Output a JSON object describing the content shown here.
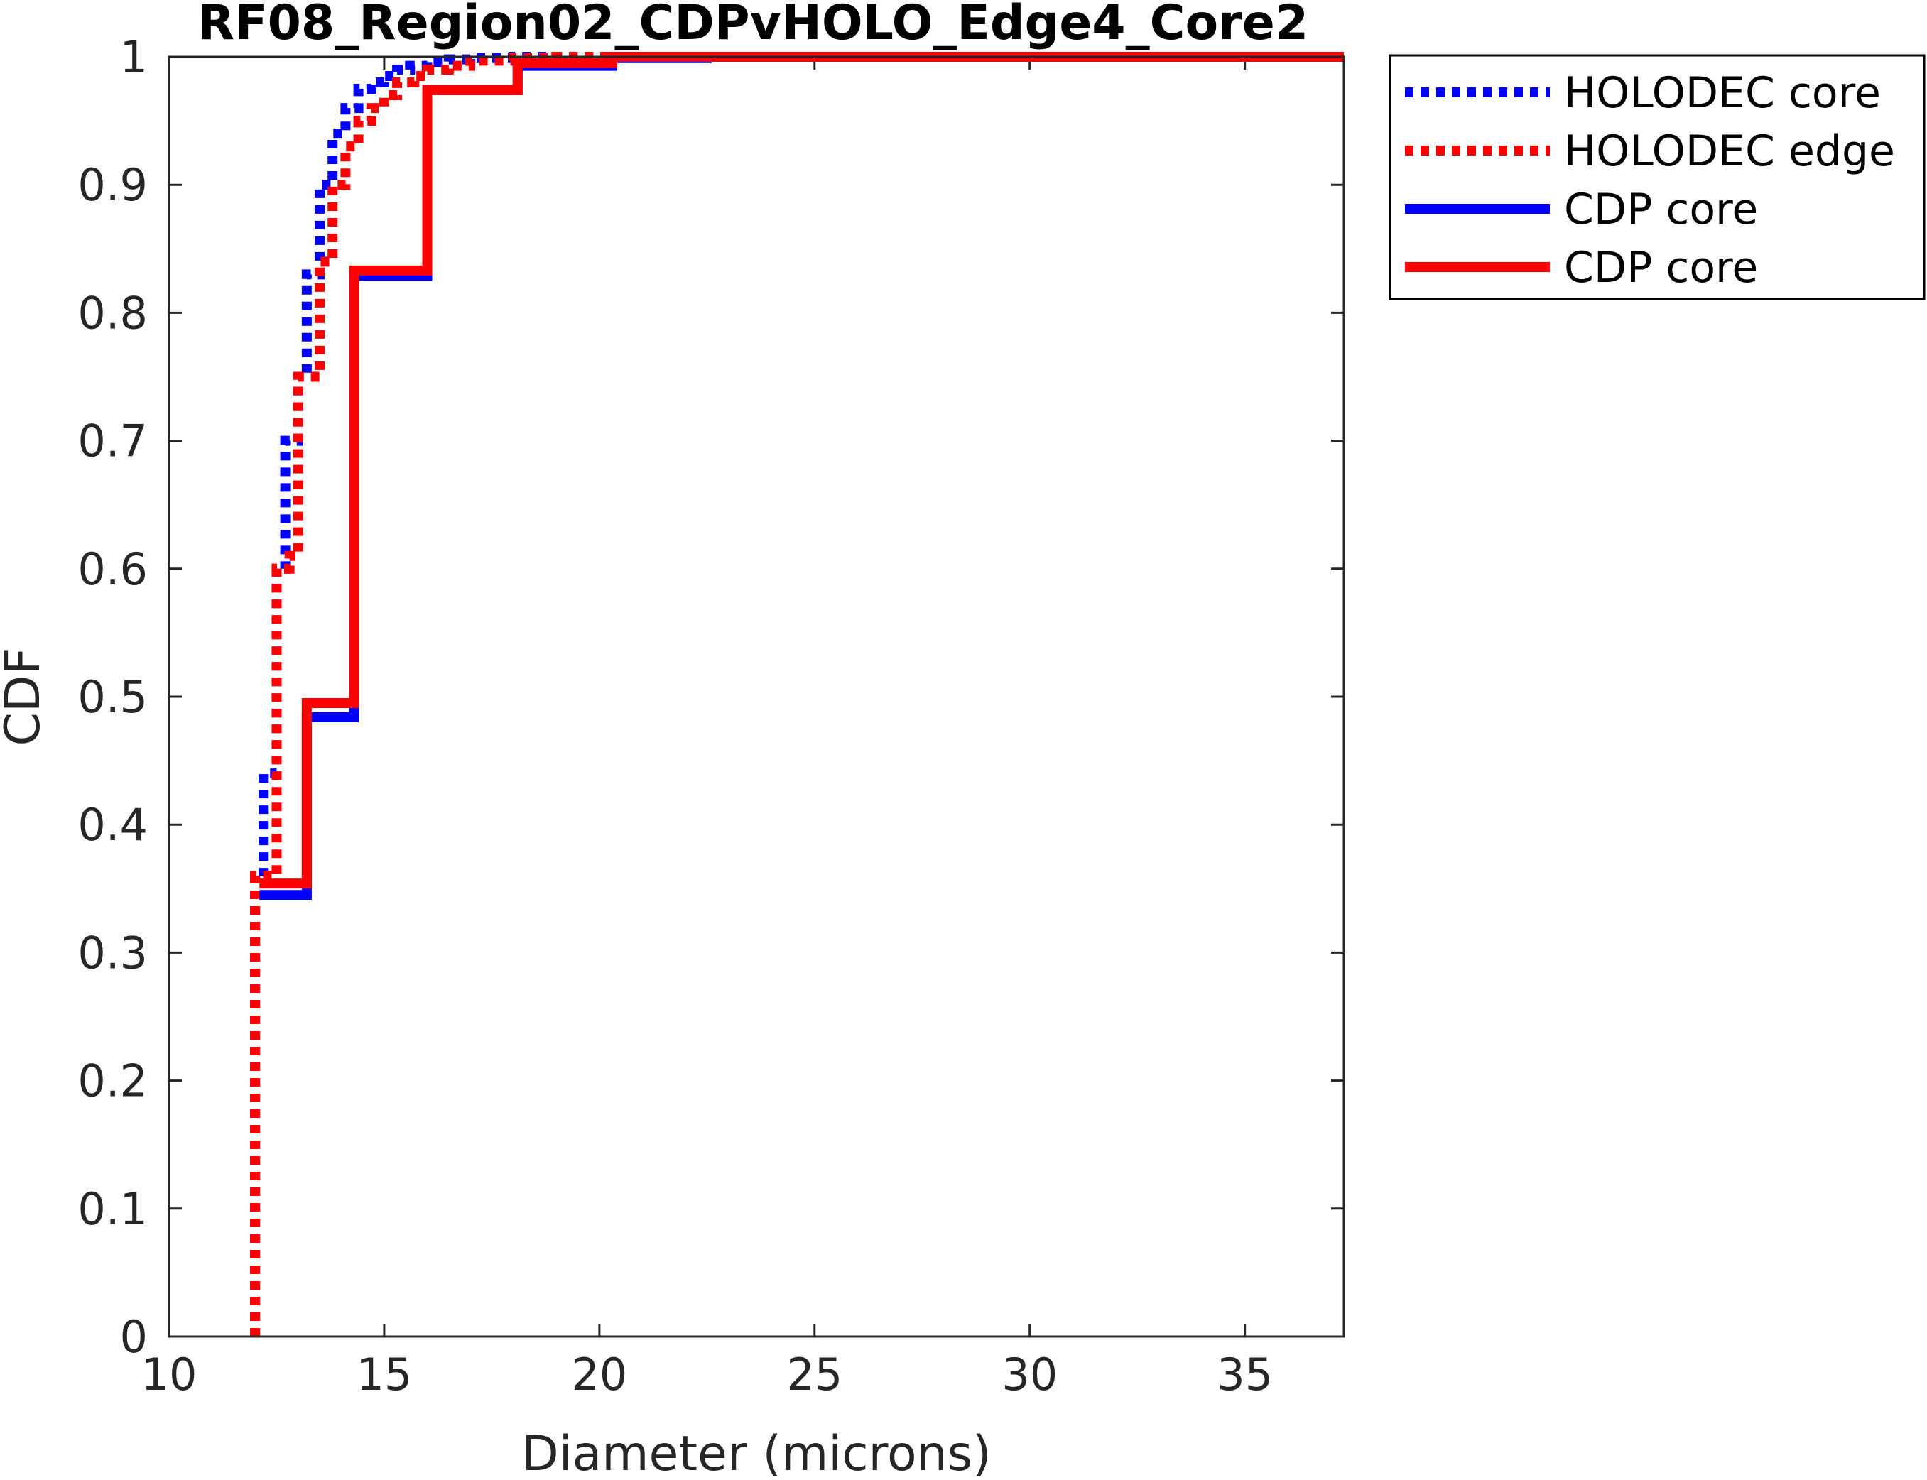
{
  "chart_data": {
    "type": "line",
    "title": "RF08_Region02_CDPvHOLO_Edge4_Core2",
    "xlabel": "Diameter (microns)",
    "ylabel": "CDF",
    "xlim": [
      10,
      37.3
    ],
    "ylim": [
      0,
      1
    ],
    "xticks": [
      10,
      15,
      20,
      25,
      30,
      35
    ],
    "yticks": [
      0,
      0.1,
      0.2,
      0.3,
      0.4,
      0.5,
      0.6,
      0.7,
      0.8,
      0.9,
      1
    ],
    "xtick_labels": [
      "10",
      "15",
      "20",
      "25",
      "30",
      "35"
    ],
    "ytick_labels": [
      "0",
      "0.1",
      "0.2",
      "0.3",
      "0.4",
      "0.5",
      "0.6",
      "0.7",
      "0.8",
      "0.9",
      "1"
    ],
    "grid": false,
    "legend_position": "outside-top-right",
    "series": [
      {
        "name": "HOLODEC core",
        "color": "#0000ff",
        "style": "dotted",
        "step": true,
        "x": [
          12.0,
          12.2,
          12.5,
          12.7,
          13.0,
          13.2,
          13.5,
          13.8,
          14.1,
          14.4,
          14.7,
          15.0,
          15.3,
          15.6,
          16.0,
          16.5,
          17.0,
          18.0,
          20.0,
          37.3
        ],
        "y": [
          0.36,
          0.44,
          0.6,
          0.7,
          0.75,
          0.83,
          0.9,
          0.94,
          0.96,
          0.975,
          0.98,
          0.985,
          0.99,
          0.993,
          0.996,
          0.998,
          0.999,
          1.0,
          1.0,
          1.0
        ]
      },
      {
        "name": "HOLODEC edge",
        "color": "#ff0000",
        "style": "dotted",
        "step": true,
        "x": [
          12.0,
          12.5,
          12.8,
          13.0,
          13.5,
          13.8,
          14.1,
          14.4,
          14.7,
          15.0,
          15.3,
          15.7,
          16.0,
          16.5,
          17.0,
          18.0,
          19.0,
          37.3
        ],
        "y": [
          0.36,
          0.6,
          0.61,
          0.75,
          0.84,
          0.9,
          0.93,
          0.95,
          0.96,
          0.97,
          0.98,
          0.985,
          0.99,
          0.993,
          0.997,
          0.999,
          1.0,
          1.0
        ]
      },
      {
        "name": "CDP core",
        "color": "#0000ff",
        "style": "solid",
        "step": true,
        "x": [
          12.1,
          13.2,
          14.3,
          16.0,
          18.1,
          20.3,
          22.5,
          37.3
        ],
        "y": [
          0.345,
          0.484,
          0.829,
          0.974,
          0.993,
          0.999,
          1.0,
          1.0
        ]
      },
      {
        "name": "CDP core",
        "color": "#ff0000",
        "style": "solid",
        "step": true,
        "x": [
          12.1,
          13.2,
          14.3,
          16.0,
          18.1,
          20.3,
          22.5,
          37.3
        ],
        "y": [
          0.354,
          0.495,
          0.833,
          0.974,
          0.995,
          1.0,
          1.0,
          1.0
        ]
      }
    ]
  }
}
